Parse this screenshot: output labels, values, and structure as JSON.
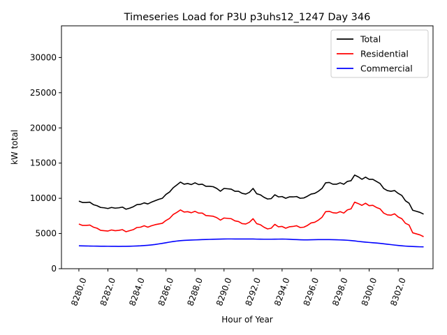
{
  "chart_data": {
    "type": "line",
    "title": "Timeseries Load for P3U p3uhs12_1247  Day 346",
    "xlabel": "Hour of Year",
    "ylabel": "kW total",
    "xlim": [
      8278.8,
      8304.4
    ],
    "ylim": [
      0,
      34500
    ],
    "xticks": [
      8280,
      8282,
      8284,
      8286,
      8288,
      8290,
      8292,
      8294,
      8296,
      8298,
      8300,
      8302
    ],
    "xtick_labels": [
      "8280.0",
      "8282.0",
      "8284.0",
      "8286.0",
      "8288.0",
      "8290.0",
      "8292.0",
      "8294.0",
      "8296.0",
      "8298.0",
      "8300.0",
      "8302.0"
    ],
    "yticks": [
      0,
      5000,
      10000,
      15000,
      20000,
      25000,
      30000
    ],
    "ytick_labels": [
      "0",
      "5000",
      "10000",
      "15000",
      "20000",
      "25000",
      "30000"
    ],
    "legend_position": "top-right",
    "x_start": 8280,
    "x_step": 0.25,
    "series": [
      {
        "name": "Total",
        "color": "#000000",
        "values": [
          9600,
          9400,
          9400,
          9450,
          9100,
          8950,
          8700,
          8650,
          8550,
          8700,
          8600,
          8650,
          8750,
          8450,
          8600,
          8800,
          9100,
          9150,
          9350,
          9200,
          9450,
          9650,
          9850,
          10000,
          10550,
          10900,
          11500,
          11900,
          12300,
          12000,
          12100,
          11950,
          12200,
          11950,
          12000,
          11700,
          11700,
          11650,
          11400,
          11000,
          11400,
          11350,
          11300,
          11000,
          11000,
          10700,
          10600,
          10850,
          11400,
          10650,
          10500,
          10150,
          9900,
          9950,
          10500,
          10200,
          10250,
          10000,
          10200,
          10200,
          10250,
          10000,
          10050,
          10300,
          10600,
          10700,
          11000,
          11400,
          12200,
          12250,
          12000,
          12000,
          12200,
          12000,
          12400,
          12500,
          13300,
          13050,
          12700,
          13000,
          12700,
          12700,
          12400,
          12100,
          11400,
          11100,
          11000,
          11100,
          10700,
          10400,
          9650,
          9300,
          8300,
          8150,
          8000,
          7750
        ]
      },
      {
        "name": "Residential",
        "color": "#ff0000",
        "values": [
          6350,
          6150,
          6150,
          6200,
          5900,
          5750,
          5450,
          5400,
          5350,
          5500,
          5400,
          5450,
          5550,
          5250,
          5400,
          5550,
          5850,
          5900,
          6100,
          5900,
          6100,
          6250,
          6350,
          6450,
          6850,
          7150,
          7700,
          8000,
          8350,
          8050,
          8100,
          7950,
          8150,
          7900,
          7900,
          7550,
          7500,
          7450,
          7250,
          6900,
          7200,
          7150,
          7100,
          6800,
          6700,
          6400,
          6350,
          6600,
          7100,
          6400,
          6250,
          5900,
          5650,
          5750,
          6300,
          5950,
          6000,
          5750,
          5950,
          6000,
          6100,
          5850,
          5900,
          6150,
          6500,
          6600,
          6900,
          7300,
          8100,
          8150,
          7950,
          7900,
          8100,
          7900,
          8350,
          8500,
          9450,
          9250,
          9000,
          9300,
          8950,
          9000,
          8700,
          8500,
          7900,
          7650,
          7600,
          7800,
          7350,
          7100,
          6450,
          6200,
          5100,
          4950,
          4800,
          4550
        ]
      },
      {
        "name": "Commercial",
        "color": "#0000ff",
        "values": [
          3250,
          3240,
          3230,
          3220,
          3210,
          3200,
          3195,
          3190,
          3185,
          3180,
          3175,
          3170,
          3175,
          3180,
          3190,
          3210,
          3230,
          3250,
          3290,
          3330,
          3380,
          3440,
          3520,
          3600,
          3690,
          3780,
          3860,
          3930,
          3980,
          4020,
          4050,
          4070,
          4090,
          4110,
          4130,
          4150,
          4165,
          4180,
          4195,
          4210,
          4220,
          4225,
          4225,
          4220,
          4215,
          4215,
          4215,
          4215,
          4215,
          4200,
          4195,
          4190,
          4190,
          4190,
          4195,
          4200,
          4210,
          4200,
          4180,
          4150,
          4130,
          4110,
          4100,
          4100,
          4110,
          4120,
          4130,
          4135,
          4135,
          4130,
          4125,
          4110,
          4090,
          4070,
          4040,
          4000,
          3950,
          3880,
          3820,
          3770,
          3730,
          3690,
          3650,
          3600,
          3540,
          3480,
          3420,
          3360,
          3300,
          3250,
          3210,
          3180,
          3150,
          3130,
          3110,
          3100
        ]
      }
    ]
  }
}
